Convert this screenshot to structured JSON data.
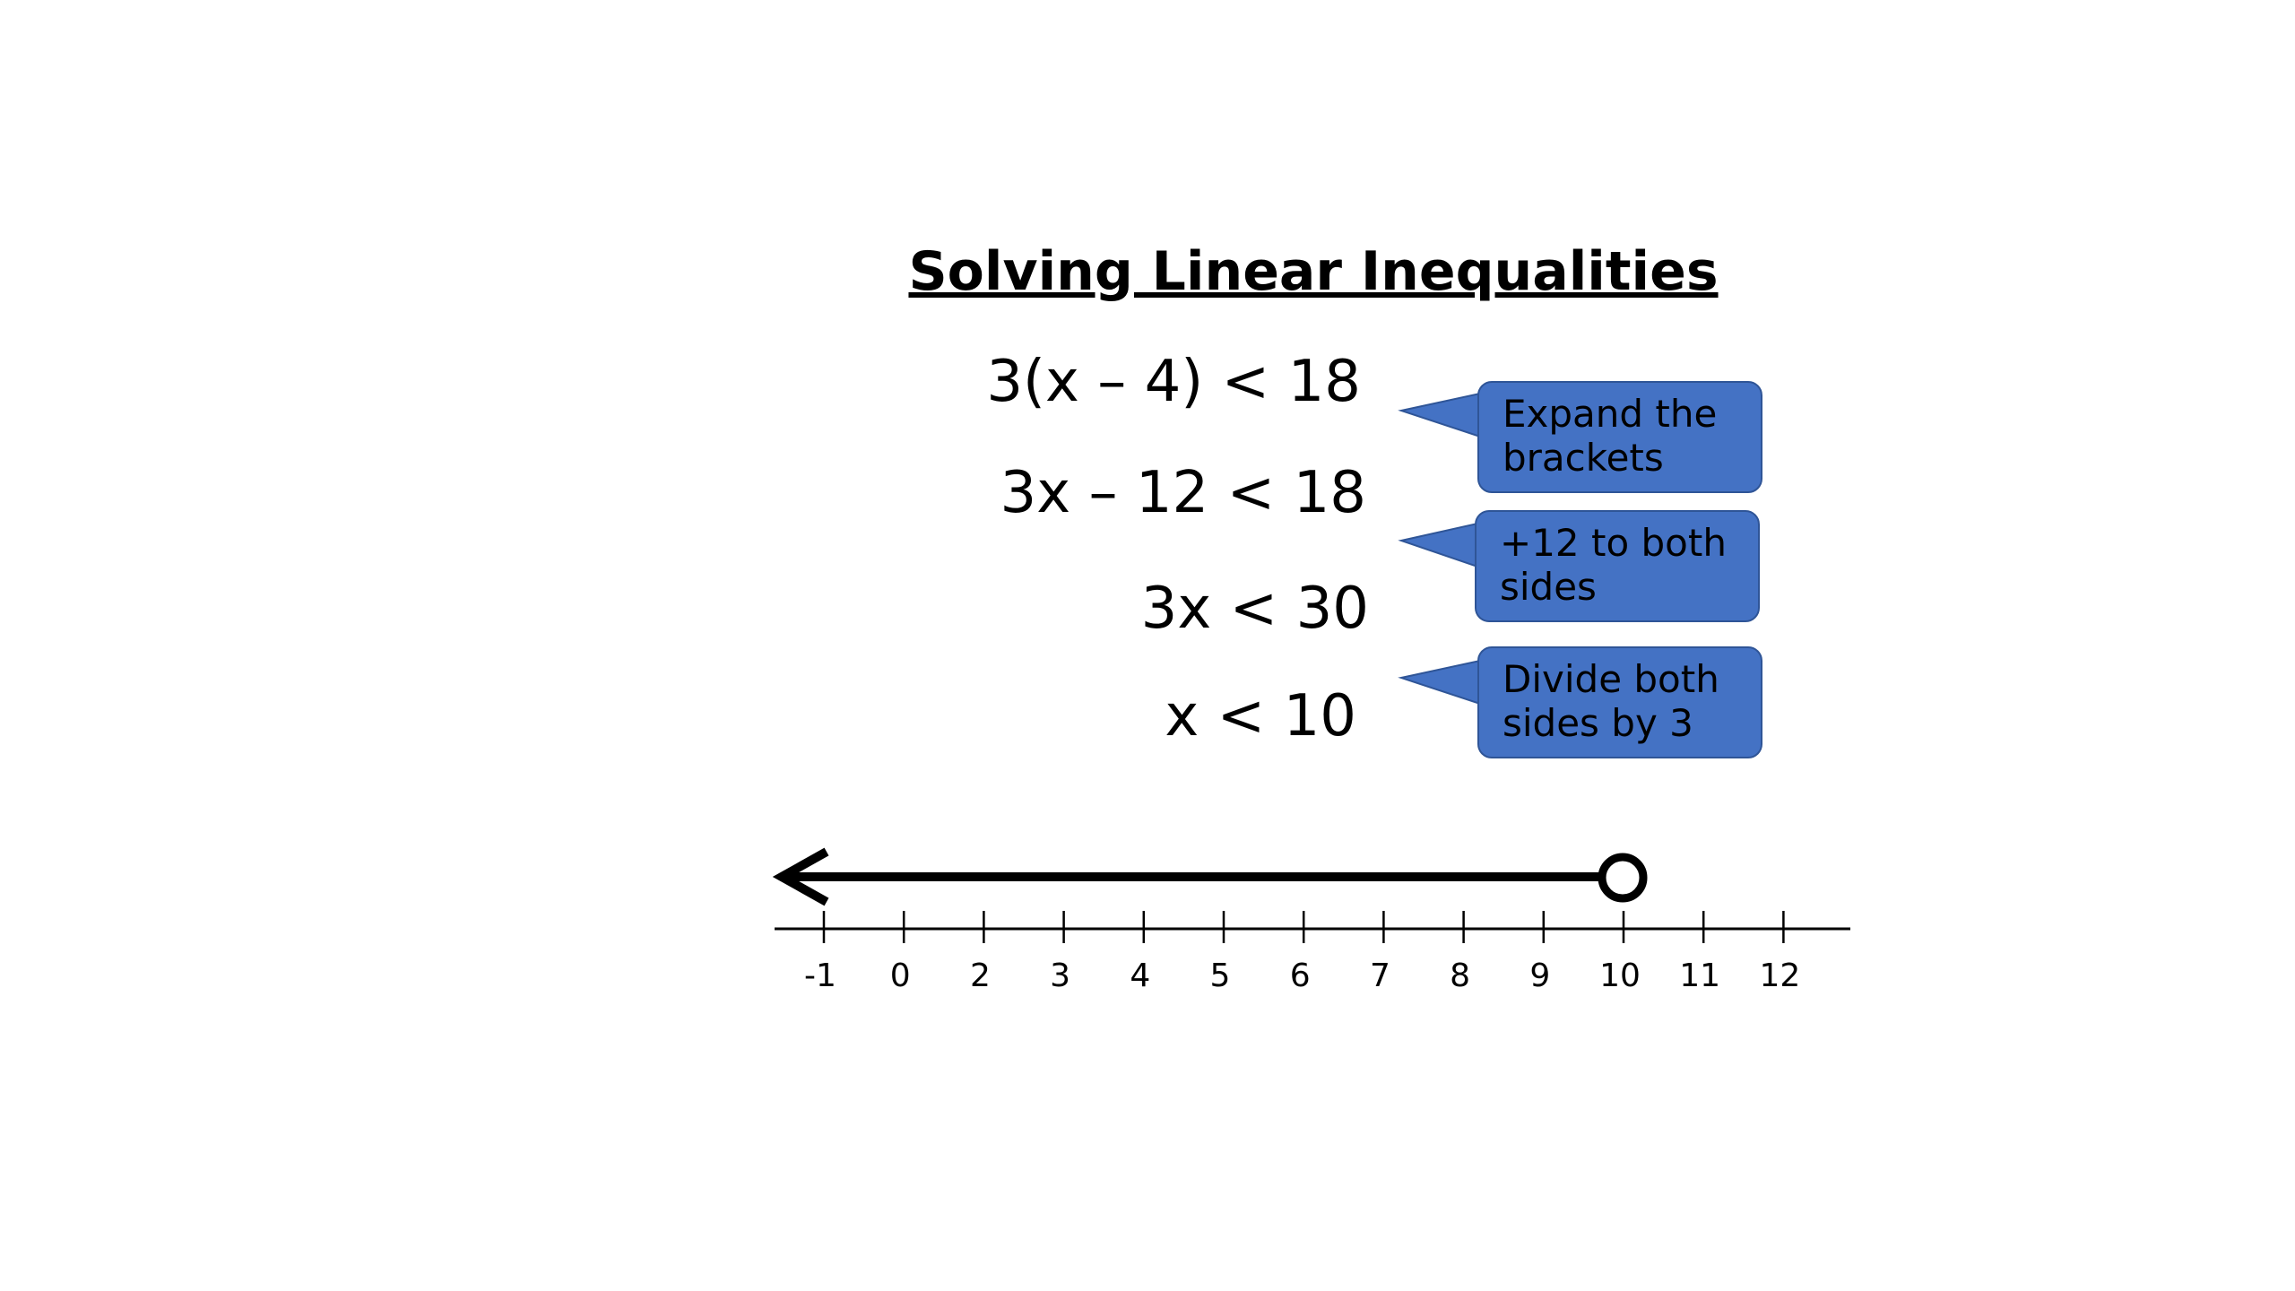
{
  "title": "Solving Linear Inequalities",
  "steps": [
    {
      "equation": "3(x – 4) < 18"
    },
    {
      "equation": "3x – 12 < 18",
      "callout": "Expand the brackets"
    },
    {
      "equation": "3x < 30",
      "callout": "+12 to both sides"
    },
    {
      "equation": "x < 10",
      "callout": "Divide both sides by 3"
    }
  ],
  "number_line": {
    "labels": [
      "-1",
      "0",
      "2",
      "3",
      "4",
      "5",
      "6",
      "7",
      "8",
      "9",
      "10",
      "11",
      "12"
    ]
  }
}
